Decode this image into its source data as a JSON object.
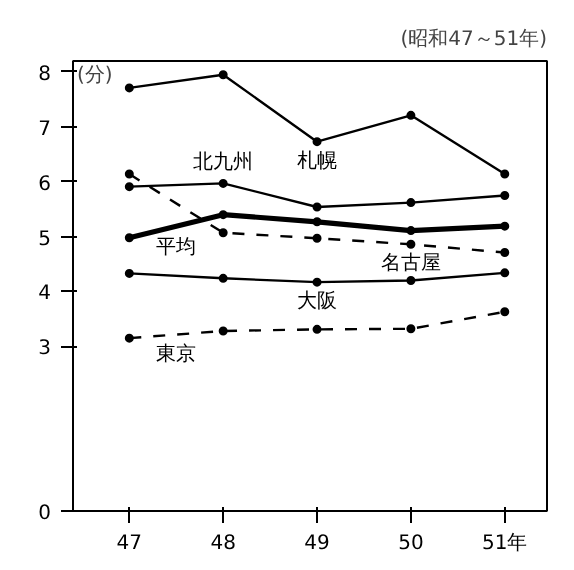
{
  "chart_data": {
    "type": "line",
    "subtitle": "(昭和47～51年)",
    "ylabel": "(分)",
    "categories": [
      "47",
      "48",
      "49",
      "50",
      "51年"
    ],
    "ylim": [
      0,
      8.2
    ],
    "yticks": [
      0,
      3,
      4,
      5,
      6,
      7,
      8
    ],
    "marker": "circle",
    "grid": false,
    "series": [
      {
        "name": "札幌",
        "color": "#000000",
        "values": [
          7.71,
          7.95,
          6.73,
          7.21,
          6.14
        ]
      },
      {
        "name": "北九州",
        "color": "#000000",
        "values": [
          5.91,
          5.97,
          5.54,
          5.62,
          5.75
        ]
      },
      {
        "name": "名古屋",
        "color": "#000000",
        "line_style": "dashed",
        "values": [
          6.14,
          5.07,
          4.97,
          4.86,
          4.71
        ]
      },
      {
        "name": "平均",
        "color": "#000000",
        "values": [
          4.98,
          5.4,
          5.27,
          5.11,
          5.19
        ]
      },
      {
        "name": "大阪",
        "color": "#000000",
        "values": [
          4.33,
          4.24,
          4.17,
          4.2,
          4.34
        ]
      },
      {
        "name": "東京",
        "color": "#000000",
        "line_style": "dashed",
        "values": [
          3.15,
          3.28,
          3.31,
          3.32,
          3.63
        ]
      }
    ]
  }
}
